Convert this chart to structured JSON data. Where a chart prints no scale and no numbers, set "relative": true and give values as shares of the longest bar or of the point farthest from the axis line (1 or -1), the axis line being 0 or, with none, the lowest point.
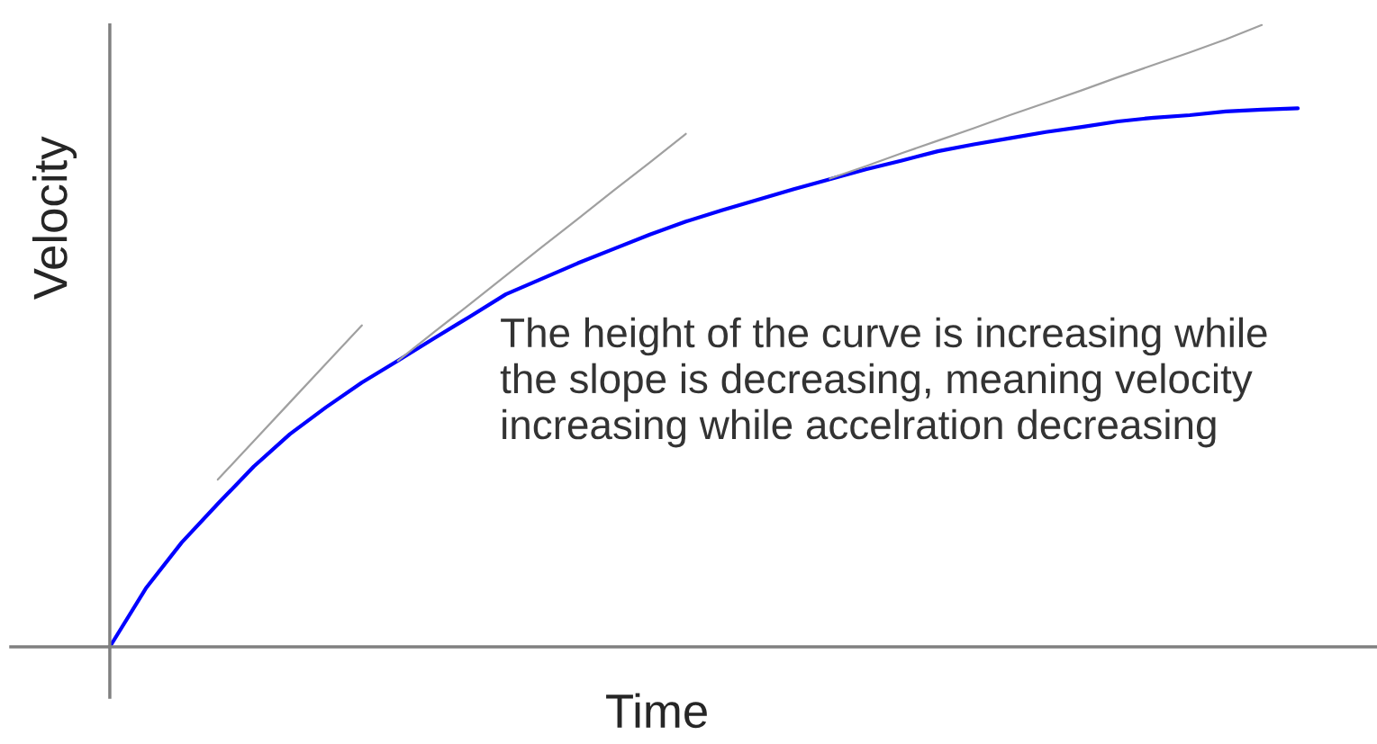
{
  "chart_data": {
    "type": "line",
    "relative": true,
    "xlabel": "Time",
    "ylabel": "Velocity",
    "categories": [
      null,
      null,
      null,
      null,
      null,
      null,
      null,
      null,
      null,
      null,
      null,
      null,
      null,
      null,
      null,
      null,
      null,
      null,
      null,
      null,
      null,
      null,
      null,
      null,
      null,
      null,
      null,
      null,
      null,
      null,
      null,
      null,
      null,
      null
    ],
    "series": [
      {
        "color": "#0000ff",
        "values": [
          0,
          0.094,
          0.168,
          0.23,
          0.29,
          0.342,
          0.385,
          0.425,
          0.46,
          0.496,
          0.531,
          0.567,
          0.592,
          0.617,
          0.64,
          0.663,
          0.684,
          0.702,
          0.719,
          0.736,
          0.752,
          0.768,
          0.782,
          0.797,
          0.808,
          0.818,
          0.828,
          0.836,
          0.845,
          0.851,
          0.855,
          0.861,
          0.864,
          0.866
        ]
      },
      {
        "color": "#a0a0a0",
        "values": [
          null,
          null,
          null,
          0.269,
          0.331,
          0.393,
          0.455,
          0.517,
          null,
          null,
          null,
          null,
          null,
          null,
          null,
          null,
          null,
          null,
          null,
          null,
          null,
          null,
          null,
          null,
          null,
          null,
          null,
          null,
          null,
          null,
          null,
          null,
          null,
          null
        ]
      },
      {
        "color": "#a0a0a0",
        "values": [
          null,
          null,
          null,
          null,
          null,
          null,
          null,
          null,
          0.46,
          0.506,
          0.551,
          0.597,
          0.643,
          0.688,
          0.734,
          0.779,
          0.825,
          null,
          null,
          null,
          null,
          null,
          null,
          null,
          null,
          null,
          null,
          null,
          null,
          null,
          null,
          null,
          null,
          null
        ]
      },
      {
        "color": "#a0a0a0",
        "values": [
          null,
          null,
          null,
          null,
          null,
          null,
          null,
          null,
          null,
          null,
          null,
          null,
          null,
          null,
          null,
          null,
          null,
          null,
          null,
          null,
          0.753,
          0.773,
          0.794,
          0.814,
          0.834,
          0.855,
          0.875,
          0.895,
          0.916,
          0.936,
          0.956,
          0.977,
          1.0,
          null
        ]
      }
    ],
    "annotations": [
      "The height of the curve is increasing while\nthe slope is decreasing, meaning velocity\nincreasing while accelration decreasing"
    ]
  }
}
